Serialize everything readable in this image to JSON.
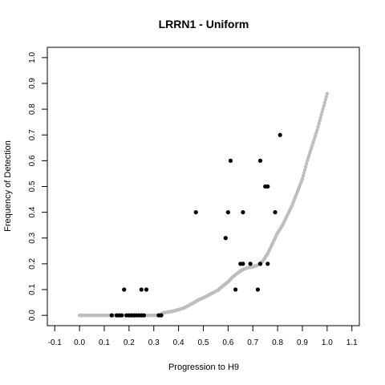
{
  "chart_data": {
    "type": "scatter",
    "title": "LRRN1 - Uniform",
    "xlabel": "Progression to H9",
    "ylabel": "Frequency of Detection",
    "xlim": [
      -0.13,
      1.13
    ],
    "ylim": [
      -0.04,
      1.04
    ],
    "x_ticks": [
      "-0.1",
      "0.0",
      "0.1",
      "0.2",
      "0.3",
      "0.4",
      "0.5",
      "0.6",
      "0.7",
      "0.8",
      "0.9",
      "1.0",
      "1.1"
    ],
    "y_ticks": [
      "0.0",
      "0.1",
      "0.2",
      "0.3",
      "0.4",
      "0.5",
      "0.6",
      "0.7",
      "0.8",
      "0.9",
      "1.0"
    ],
    "grid": false,
    "legend": "none",
    "series": [
      {
        "color": "#bebebe",
        "style": "uniform-curve",
        "points": [
          [
            0.0,
            0.0
          ],
          [
            0.02,
            0.0
          ],
          [
            0.04,
            0.0
          ],
          [
            0.06,
            0.0
          ],
          [
            0.08,
            0.0
          ],
          [
            0.1,
            0.0
          ],
          [
            0.12,
            0.0
          ],
          [
            0.14,
            0.0
          ],
          [
            0.16,
            0.0
          ],
          [
            0.18,
            0.0
          ],
          [
            0.2,
            0.0
          ],
          [
            0.22,
            0.0
          ],
          [
            0.24,
            0.0
          ],
          [
            0.26,
            0.0
          ],
          [
            0.28,
            0.0
          ],
          [
            0.3,
            0.0
          ],
          [
            0.32,
            0.0
          ],
          [
            0.34,
            0.01
          ],
          [
            0.36,
            0.013
          ],
          [
            0.38,
            0.017
          ],
          [
            0.4,
            0.022
          ],
          [
            0.42,
            0.028
          ],
          [
            0.44,
            0.038
          ],
          [
            0.46,
            0.048
          ],
          [
            0.48,
            0.06
          ],
          [
            0.5,
            0.068
          ],
          [
            0.52,
            0.078
          ],
          [
            0.54,
            0.088
          ],
          [
            0.56,
            0.098
          ],
          [
            0.58,
            0.115
          ],
          [
            0.6,
            0.13
          ],
          [
            0.62,
            0.15
          ],
          [
            0.64,
            0.165
          ],
          [
            0.66,
            0.178
          ],
          [
            0.68,
            0.185
          ],
          [
            0.7,
            0.188
          ],
          [
            0.72,
            0.195
          ],
          [
            0.74,
            0.21
          ],
          [
            0.76,
            0.24
          ],
          [
            0.78,
            0.28
          ],
          [
            0.8,
            0.32
          ],
          [
            0.82,
            0.35
          ],
          [
            0.84,
            0.39
          ],
          [
            0.86,
            0.43
          ],
          [
            0.88,
            0.48
          ],
          [
            0.9,
            0.53
          ],
          [
            0.92,
            0.6
          ],
          [
            0.94,
            0.66
          ],
          [
            0.96,
            0.72
          ],
          [
            0.98,
            0.79
          ],
          [
            1.0,
            0.86
          ]
        ]
      },
      {
        "color": "#000000",
        "style": "points",
        "points": [
          [
            0.13,
            0.0
          ],
          [
            0.15,
            0.0
          ],
          [
            0.16,
            0.0
          ],
          [
            0.17,
            0.0
          ],
          [
            0.19,
            0.0
          ],
          [
            0.2,
            0.0
          ],
          [
            0.21,
            0.0
          ],
          [
            0.22,
            0.0
          ],
          [
            0.23,
            0.0
          ],
          [
            0.24,
            0.0
          ],
          [
            0.25,
            0.0
          ],
          [
            0.26,
            0.0
          ],
          [
            0.32,
            0.0
          ],
          [
            0.33,
            0.0
          ],
          [
            0.18,
            0.1
          ],
          [
            0.25,
            0.1
          ],
          [
            0.27,
            0.1
          ],
          [
            0.47,
            0.4
          ],
          [
            0.59,
            0.3
          ],
          [
            0.6,
            0.4
          ],
          [
            0.61,
            0.6
          ],
          [
            0.63,
            0.1
          ],
          [
            0.65,
            0.2
          ],
          [
            0.66,
            0.2
          ],
          [
            0.66,
            0.4
          ],
          [
            0.69,
            0.2
          ],
          [
            0.72,
            0.1
          ],
          [
            0.73,
            0.6
          ],
          [
            0.73,
            0.2
          ],
          [
            0.75,
            0.5
          ],
          [
            0.76,
            0.5
          ],
          [
            0.76,
            0.2
          ],
          [
            0.79,
            0.4
          ],
          [
            0.81,
            0.7
          ]
        ]
      }
    ]
  }
}
